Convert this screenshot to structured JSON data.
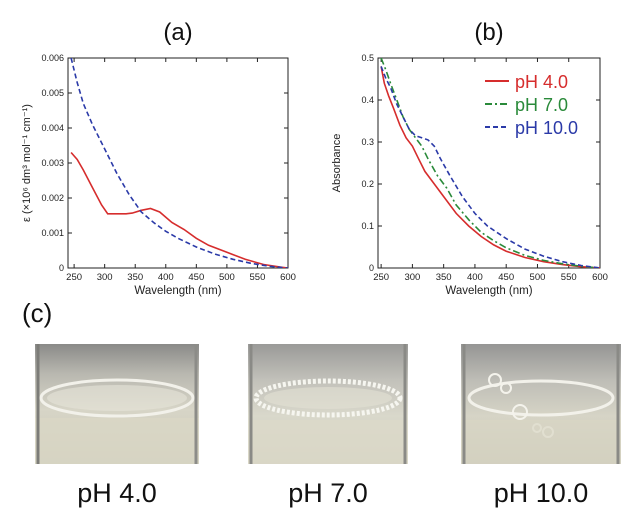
{
  "chart_data": [
    {
      "type": "line",
      "panel_label": "(a)",
      "xlabel": "Wavelength (nm)",
      "ylabel": "ε (×10⁶ dm³ mol⁻¹ cm⁻¹)",
      "xlim": [
        240,
        600
      ],
      "ylim": [
        0,
        0.006
      ],
      "xticks": [
        "250",
        "300",
        "350",
        "400",
        "450",
        "500",
        "550",
        "600"
      ],
      "yticks": [
        "0",
        "0.001",
        "0.002",
        "0.003",
        "0.004",
        "0.005",
        "0.006"
      ],
      "grid": false,
      "series": [
        {
          "color": "#d62d2d",
          "dash": "solid",
          "x": [
            245,
            255,
            265,
            280,
            295,
            305,
            320,
            335,
            345,
            360,
            375,
            390,
            410,
            430,
            450,
            470,
            500,
            530,
            560,
            590,
            600
          ],
          "y": [
            0.0033,
            0.0031,
            0.0028,
            0.0023,
            0.0018,
            0.00155,
            0.00155,
            0.00155,
            0.00157,
            0.00165,
            0.0017,
            0.0016,
            0.0013,
            0.0011,
            0.00085,
            0.00065,
            0.00045,
            0.00025,
            0.0001,
            2e-05,
            0
          ]
        },
        {
          "color": "#2b3aa8",
          "dash": "dashed",
          "x": [
            245,
            255,
            265,
            280,
            300,
            320,
            340,
            360,
            380,
            400,
            420,
            450,
            480,
            510,
            540,
            570,
            600
          ],
          "y": [
            0.006,
            0.0053,
            0.0047,
            0.0041,
            0.0034,
            0.0027,
            0.0021,
            0.0016,
            0.0013,
            0.00105,
            0.00085,
            0.0006,
            0.0004,
            0.00025,
            0.00013,
            5e-05,
            0
          ]
        }
      ]
    },
    {
      "type": "line",
      "panel_label": "(b)",
      "xlabel": "Wavelength (nm)",
      "ylabel": "Absorbance",
      "xlim": [
        245,
        600
      ],
      "ylim": [
        0,
        0.5
      ],
      "xticks": [
        "250",
        "300",
        "350",
        "400",
        "450",
        "500",
        "550",
        "600"
      ],
      "yticks": [
        "0",
        "0.1",
        "0.2",
        "0.3",
        "0.4",
        "0.5"
      ],
      "grid": false,
      "legend_position": "top-right",
      "series": [
        {
          "name": "pH 4.0",
          "color": "#d62d2d",
          "dash": "solid",
          "x": [
            250,
            255,
            262,
            270,
            280,
            290,
            300,
            310,
            320,
            335,
            350,
            370,
            390,
            410,
            430,
            450,
            480,
            510,
            540,
            570,
            600
          ],
          "y": [
            0.48,
            0.44,
            0.41,
            0.38,
            0.34,
            0.31,
            0.29,
            0.26,
            0.23,
            0.2,
            0.17,
            0.13,
            0.1,
            0.075,
            0.055,
            0.04,
            0.025,
            0.015,
            0.008,
            0.003,
            0
          ]
        },
        {
          "name": "pH 7.0",
          "color": "#2a8a3a",
          "dash": "dashdot",
          "x": [
            250,
            258,
            265,
            275,
            285,
            295,
            305,
            315,
            325,
            340,
            355,
            370,
            390,
            410,
            430,
            450,
            480,
            510,
            540,
            570,
            600
          ],
          "y": [
            0.5,
            0.47,
            0.44,
            0.4,
            0.36,
            0.33,
            0.31,
            0.29,
            0.26,
            0.22,
            0.19,
            0.15,
            0.115,
            0.085,
            0.065,
            0.048,
            0.03,
            0.018,
            0.01,
            0.004,
            0
          ]
        },
        {
          "name": "pH 10.0",
          "color": "#2b3aa8",
          "dash": "dashed",
          "x": [
            250,
            258,
            265,
            275,
            285,
            295,
            305,
            315,
            325,
            335,
            345,
            360,
            380,
            400,
            420,
            450,
            480,
            510,
            540,
            570,
            600
          ],
          "y": [
            0.48,
            0.45,
            0.43,
            0.39,
            0.36,
            0.33,
            0.315,
            0.31,
            0.305,
            0.29,
            0.26,
            0.22,
            0.17,
            0.13,
            0.1,
            0.07,
            0.045,
            0.028,
            0.015,
            0.006,
            0
          ]
        }
      ]
    }
  ],
  "panel_c": {
    "label": "(c)",
    "photos": [
      {
        "caption": "pH 4.0"
      },
      {
        "caption": "pH 7.0"
      },
      {
        "caption": "pH 10.0"
      }
    ]
  }
}
